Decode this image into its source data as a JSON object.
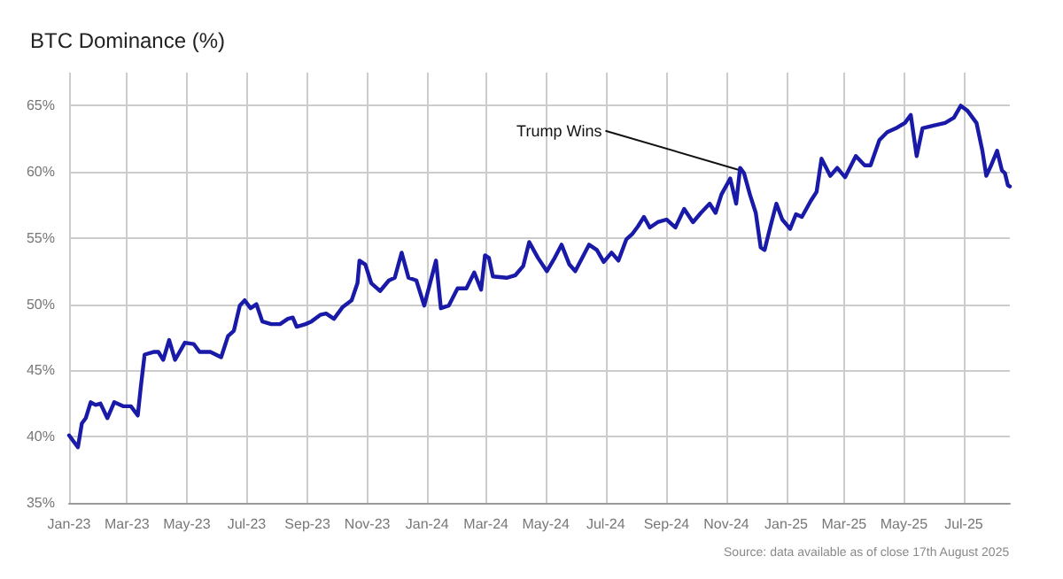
{
  "chart_data": {
    "type": "line",
    "title": "BTC Dominance (%)",
    "annotations": [
      {
        "text": "Trump Wins",
        "x": "2024-11-15",
        "y": 60.3
      },
      "Source: data available as of close 17th August 2025"
    ],
    "x": [
      "2023-01-01",
      "2023-01-06",
      "2023-01-10",
      "2023-01-14",
      "2023-01-18",
      "2023-01-23",
      "2023-01-28",
      "2023-02-02",
      "2023-02-09",
      "2023-02-16",
      "2023-02-25",
      "2023-03-05",
      "2023-03-12",
      "2023-03-15",
      "2023-03-19",
      "2023-03-28",
      "2023-04-02",
      "2023-04-07",
      "2023-04-13",
      "2023-04-19",
      "2023-04-29",
      "2023-05-08",
      "2023-05-14",
      "2023-05-25",
      "2023-06-05",
      "2023-06-12",
      "2023-06-18",
      "2023-06-24",
      "2023-06-29",
      "2023-07-05",
      "2023-07-11",
      "2023-07-17",
      "2023-07-26",
      "2023-08-04",
      "2023-08-12",
      "2023-08-17",
      "2023-08-21",
      "2023-08-30",
      "2023-09-05",
      "2023-09-14",
      "2023-09-20",
      "2023-09-28",
      "2023-10-07",
      "2023-10-16",
      "2023-10-22",
      "2023-10-24",
      "2023-10-30",
      "2023-11-05",
      "2023-11-14",
      "2023-11-23",
      "2023-11-29",
      "2023-12-06",
      "2023-12-13",
      "2023-12-21",
      "2023-12-29",
      "2024-01-10",
      "2024-01-15",
      "2024-01-23",
      "2024-02-01",
      "2024-02-10",
      "2024-02-18",
      "2024-02-25",
      "2024-02-29",
      "2024-03-04",
      "2024-03-08",
      "2024-03-22",
      "2024-03-31",
      "2024-04-08",
      "2024-04-14",
      "2024-04-23",
      "2024-05-02",
      "2024-05-10",
      "2024-05-17",
      "2024-05-25",
      "2024-05-31",
      "2024-06-14",
      "2024-06-22",
      "2024-06-29",
      "2024-07-07",
      "2024-07-14",
      "2024-07-22",
      "2024-07-28",
      "2024-08-03",
      "2024-08-09",
      "2024-08-15",
      "2024-08-23",
      "2024-09-01",
      "2024-09-10",
      "2024-09-19",
      "2024-09-28",
      "2024-10-06",
      "2024-10-15",
      "2024-10-21",
      "2024-10-27",
      "2024-11-05",
      "2024-11-11",
      "2024-11-15",
      "2024-11-19",
      "2024-11-25",
      "2024-12-01",
      "2024-12-06",
      "2024-12-10",
      "2024-12-16",
      "2024-12-22",
      "2024-12-28",
      "2025-01-05",
      "2025-01-11",
      "2025-01-17",
      "2025-01-26",
      "2025-02-01",
      "2025-02-06",
      "2025-02-15",
      "2025-02-22",
      "2025-03-02",
      "2025-03-13",
      "2025-03-22",
      "2025-03-28",
      "2025-04-06",
      "2025-04-14",
      "2025-04-23",
      "2025-05-02",
      "2025-05-08",
      "2025-05-14",
      "2025-05-20",
      "2025-05-31",
      "2025-06-12",
      "2025-06-21",
      "2025-06-28",
      "2025-07-05",
      "2025-07-14",
      "2025-07-20",
      "2025-07-24",
      "2025-07-29",
      "2025-08-04",
      "2025-08-09",
      "2025-08-12",
      "2025-08-15",
      "2025-08-17"
    ],
    "series": [
      {
        "color": "#1a1aa8",
        "values": [
          40.1,
          39.6,
          39.2,
          41.0,
          41.4,
          42.6,
          42.4,
          42.5,
          41.4,
          42.6,
          42.3,
          42.3,
          41.6,
          43.7,
          46.2,
          46.4,
          46.4,
          45.8,
          47.3,
          45.8,
          47.1,
          47.0,
          46.4,
          46.4,
          46.0,
          47.6,
          48.0,
          49.9,
          50.3,
          49.7,
          50.0,
          48.7,
          48.5,
          48.5,
          48.9,
          49.0,
          48.3,
          48.5,
          48.7,
          49.2,
          49.3,
          48.9,
          49.8,
          50.3,
          51.6,
          53.3,
          53.0,
          51.6,
          51.0,
          51.8,
          52.0,
          53.9,
          52.0,
          51.8,
          49.9,
          53.3,
          49.7,
          49.9,
          51.2,
          51.2,
          52.4,
          51.1,
          53.7,
          53.5,
          52.1,
          52.0,
          52.2,
          52.9,
          54.7,
          53.5,
          52.5,
          53.5,
          54.5,
          53.0,
          52.5,
          54.5,
          54.1,
          53.2,
          53.9,
          53.3,
          54.9,
          55.3,
          55.9,
          56.6,
          55.8,
          56.2,
          56.4,
          55.8,
          57.2,
          56.2,
          56.9,
          57.6,
          56.9,
          58.3,
          59.5,
          57.6,
          60.3,
          59.9,
          58.3,
          56.9,
          54.3,
          54.1,
          55.9,
          57.6,
          56.4,
          55.7,
          56.8,
          56.6,
          57.8,
          58.5,
          61.0,
          59.7,
          60.3,
          59.6,
          61.2,
          60.5,
          60.5,
          62.4,
          63.0,
          63.3,
          63.7,
          64.3,
          61.2,
          63.3,
          63.5,
          63.7,
          64.1,
          65.0,
          64.6,
          63.7,
          61.6,
          59.7,
          60.5,
          61.6,
          60.1,
          59.9,
          59.0,
          58.9
        ]
      }
    ],
    "xlim": [
      "2023-01-01",
      "2025-08-17"
    ],
    "xticks": [
      {
        "value": "2023-01-01",
        "label": "Jan-23"
      },
      {
        "value": "2023-03-01",
        "label": "Mar-23"
      },
      {
        "value": "2023-05-01",
        "label": "May-23"
      },
      {
        "value": "2023-07-01",
        "label": "Jul-23"
      },
      {
        "value": "2023-09-01",
        "label": "Sep-23"
      },
      {
        "value": "2023-11-01",
        "label": "Nov-23"
      },
      {
        "value": "2024-01-01",
        "label": "Jan-24"
      },
      {
        "value": "2024-03-01",
        "label": "Mar-24"
      },
      {
        "value": "2024-05-01",
        "label": "May-24"
      },
      {
        "value": "2024-07-01",
        "label": "Jul-24"
      },
      {
        "value": "2024-09-01",
        "label": "Sep-24"
      },
      {
        "value": "2024-11-01",
        "label": "Nov-24"
      },
      {
        "value": "2025-01-01",
        "label": "Jan-25"
      },
      {
        "value": "2025-03-01",
        "label": "Mar-25"
      },
      {
        "value": "2025-05-01",
        "label": "May-25"
      },
      {
        "value": "2025-07-01",
        "label": "Jul-25"
      }
    ],
    "ylim": [
      35,
      67.5
    ],
    "yticks": [
      {
        "value": 35,
        "label": "35%"
      },
      {
        "value": 40,
        "label": "40%"
      },
      {
        "value": 45,
        "label": "45%"
      },
      {
        "value": 50,
        "label": "50%"
      },
      {
        "value": 55,
        "label": "55%"
      },
      {
        "value": 60,
        "label": "60%"
      },
      {
        "value": 65,
        "label": "65%"
      }
    ],
    "grid": true,
    "marker": "none",
    "line_style": "solid"
  }
}
